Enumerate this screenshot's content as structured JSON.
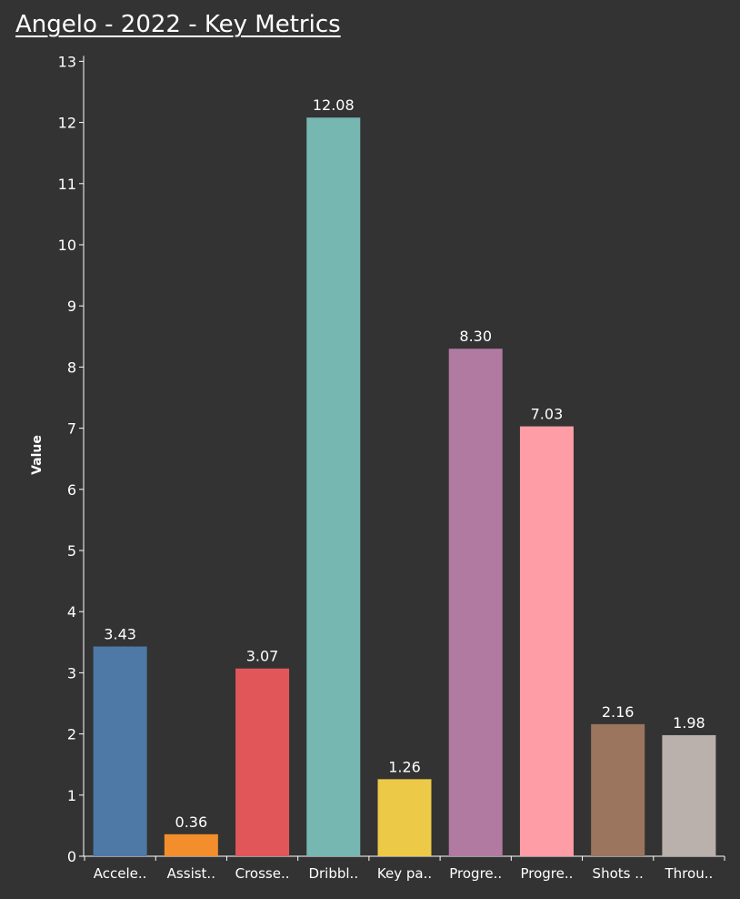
{
  "chart_data": {
    "type": "bar",
    "title": "Angelo - 2022 - Key Metrics",
    "xlabel": "",
    "ylabel": "Value",
    "ylim": [
      0,
      13
    ],
    "yticks": [
      "0",
      "1",
      "2",
      "3",
      "4",
      "5",
      "6",
      "7",
      "8",
      "9",
      "10",
      "11",
      "12",
      "13"
    ],
    "grid": false,
    "legend": "none",
    "categories": [
      "Accele..",
      "Assist..",
      "Crosse..",
      "Dribbl..",
      "Key pa..",
      "Progre..",
      "Progre..",
      "Shots ..",
      "Throu.."
    ],
    "values": [
      3.43,
      0.36,
      3.07,
      12.08,
      1.26,
      8.3,
      7.03,
      2.16,
      1.98
    ],
    "value_labels": [
      "3.43",
      "0.36",
      "3.07",
      "12.08",
      "1.26",
      "8.30",
      "7.03",
      "2.16",
      "1.98"
    ],
    "colors": [
      "#4e79a7",
      "#f28e2b",
      "#e15759",
      "#76b7b2",
      "#edc948",
      "#b07aa1",
      "#ff9da7",
      "#9c755f",
      "#bab0ac"
    ],
    "background": "#333333",
    "axis_color": "#ffffff"
  }
}
